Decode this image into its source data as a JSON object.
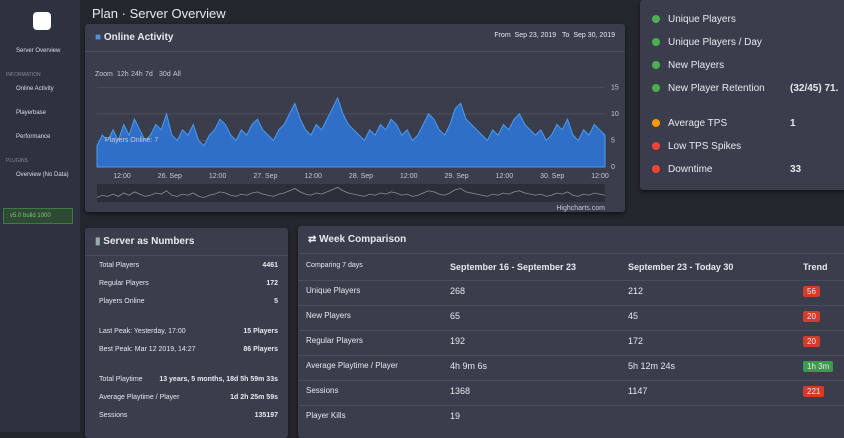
{
  "sidebar": {
    "items": [
      "Server Overview",
      "INFORMATION",
      "Online Activity",
      "Playerbase",
      "Performance",
      "PLUGINS",
      "Overview (No Data)"
    ],
    "version": "v5.0 build 1000"
  },
  "header": {
    "title": "Plan · Server Overview"
  },
  "online_activity": {
    "title": "Online Activity",
    "from_label": "From",
    "from": "Sep 23, 2019",
    "to_label": "To",
    "to": "Sep 30, 2019",
    "zoom_label": "Zoom",
    "zoom": [
      "12h",
      "24h",
      "7d",
      "30d",
      "All"
    ],
    "tooltip": "Players Online: 7",
    "credit": "Highcharts.com",
    "xlabels": [
      "12:00",
      "26. Sep",
      "12:00",
      "27. Sep",
      "12:00",
      "28. Sep",
      "12:00",
      "29. Sep",
      "12:00",
      "30. Sep",
      "12:00"
    ],
    "ylim": [
      0,
      16
    ],
    "yticks": [
      0,
      5,
      10,
      15
    ],
    "values": [
      4,
      6,
      5,
      7,
      5,
      8,
      6,
      9,
      7,
      5,
      6,
      8,
      7,
      10,
      6,
      5,
      7,
      6,
      8,
      5,
      4,
      6,
      7,
      9,
      8,
      6,
      5,
      7,
      6,
      8,
      9,
      7,
      6,
      5,
      7,
      8,
      10,
      12,
      9,
      7,
      6,
      8,
      7,
      9,
      11,
      13,
      10,
      8,
      7,
      6,
      5,
      7,
      6,
      8,
      7,
      9,
      8,
      6,
      7,
      5,
      6,
      8,
      10,
      9,
      7,
      6,
      8,
      11,
      12,
      9,
      8,
      7,
      6,
      5,
      7,
      6,
      8,
      7,
      9,
      10,
      8,
      7,
      6,
      7,
      5,
      6,
      8,
      7,
      9,
      6,
      5,
      7,
      6,
      8,
      7,
      6
    ]
  },
  "overview": {
    "rows": [
      [
        "Unique Players",
        ""
      ],
      [
        "Unique Players / Day",
        ""
      ],
      [
        "New Players",
        ""
      ],
      [
        "New Player Retention",
        "(32/45)  71."
      ],
      [
        "Average TPS",
        "1"
      ],
      [
        "Low TPS Spikes",
        ""
      ],
      [
        "Downtime",
        "33"
      ]
    ]
  },
  "numbers": {
    "title": "Server as Numbers",
    "rows": [
      [
        "Total Players",
        "4461"
      ],
      [
        "Regular Players",
        "172"
      ],
      [
        "Players Online",
        "5"
      ],
      [
        "Last Peak: Yesterday, 17:00",
        "15 Players"
      ],
      [
        "Best Peak: Mar 12 2019, 14:27",
        "86 Players"
      ],
      [
        "Total Playtime",
        "13 years, 5 months, 18d 5h 59m 33s"
      ],
      [
        "Average Playtime / Player",
        "1d 2h 25m 59s"
      ],
      [
        "Sessions",
        "135197"
      ]
    ]
  },
  "week": {
    "title": "Week Comparison",
    "header": [
      "Comparing 7 days",
      "September 16 - September 23",
      "September 23 - Today 30",
      "Trend"
    ],
    "rows": [
      [
        "Unique Players",
        "268",
        "212",
        "56"
      ],
      [
        "New Players",
        "65",
        "45",
        "20"
      ],
      [
        "Regular Players",
        "192",
        "172",
        "20"
      ],
      [
        "Average Playtime / Player",
        "4h 9m 6s",
        "5h 12m 24s",
        "1h 3m"
      ],
      [
        "Sessions",
        "1368",
        "1147",
        "221"
      ],
      [
        "Player Kills",
        "19",
        "",
        ""
      ]
    ]
  }
}
